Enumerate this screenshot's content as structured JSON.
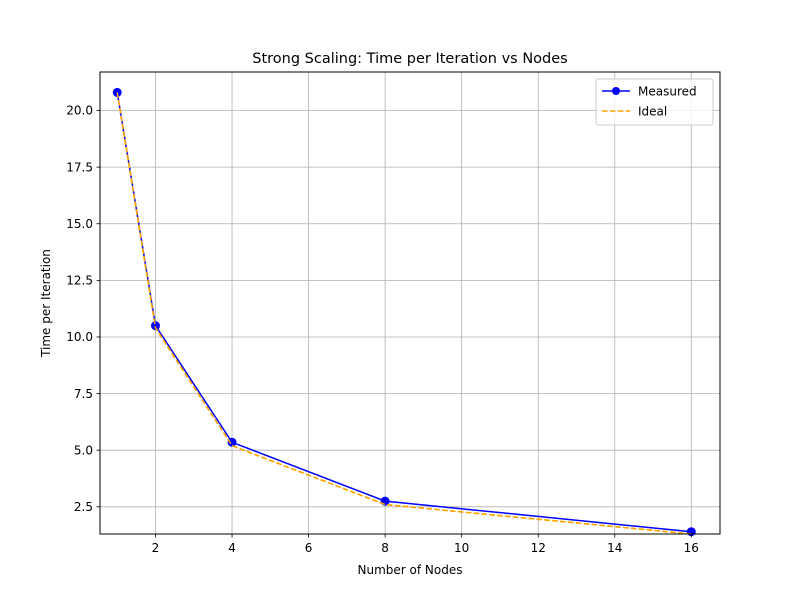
{
  "chart_data": {
    "type": "line",
    "title": "Strong Scaling: Time per Iteration vs Nodes",
    "xlabel": "Number of Nodes",
    "ylabel": "Time per Iteration",
    "xlim": [
      0.55,
      16.75
    ],
    "ylim": [
      1.3,
      21.7
    ],
    "xticks": [
      2,
      4,
      6,
      8,
      10,
      12,
      14,
      16
    ],
    "yticks": [
      2.5,
      5.0,
      7.5,
      10.0,
      12.5,
      15.0,
      17.5,
      20.0
    ],
    "xtick_labels": [
      "2",
      "4",
      "6",
      "8",
      "10",
      "12",
      "14",
      "16"
    ],
    "ytick_labels": [
      "2.5",
      "5.0",
      "7.5",
      "10.0",
      "12.5",
      "15.0",
      "17.5",
      "20.0"
    ],
    "grid": true,
    "legend_position": "top-right",
    "x": [
      1,
      2,
      4,
      8,
      16
    ],
    "series": [
      {
        "name": "Measured",
        "values": [
          20.8,
          10.5,
          5.35,
          2.75,
          1.4
        ],
        "color": "#0000ff",
        "style": "solid",
        "marker": "circle"
      },
      {
        "name": "Ideal",
        "values": [
          20.8,
          10.4,
          5.2,
          2.6,
          1.3
        ],
        "color": "#ffa500",
        "style": "dashed",
        "marker": "none"
      }
    ]
  }
}
